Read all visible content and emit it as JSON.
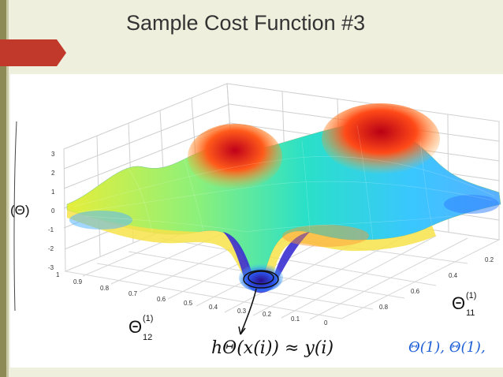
{
  "slide": {
    "title": "Sample Cost Function #3"
  },
  "figure": {
    "z_ticks": [
      "3",
      "2",
      "1",
      "0",
      "-1",
      "-2",
      "-3"
    ],
    "x_ticks": [
      "1",
      "0.9",
      "0.8",
      "0.7",
      "0.6",
      "0.5",
      "0.4",
      "0.3",
      "0.2",
      "0.1",
      "0"
    ],
    "y_ticks": [
      "0.2",
      "0.4",
      "0.6",
      "0.8"
    ],
    "labels": {
      "theta_paren": "(Θ)",
      "theta12": "Θ",
      "theta12_sup": "(1)",
      "theta12_sub": "12",
      "theta11": "Θ",
      "theta11_sup": "(1)",
      "theta11_sub": "11"
    },
    "handwriting": {
      "hypothesis": "hΘ(x(i)) ≈ y(i)",
      "params": "Θ(1), Θ(1),"
    }
  },
  "colors": {
    "accent_red": "#c0392b",
    "background": "#eef0dd",
    "ink_black": "#111111",
    "ink_blue": "#1f5fd6"
  }
}
